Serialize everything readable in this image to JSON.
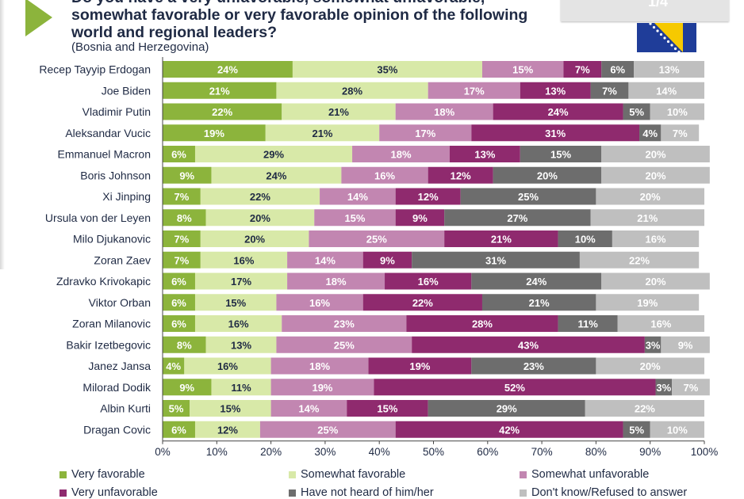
{
  "header": {
    "title": "Do you have a very unfavorable, somewhat unfavorable, somewhat favorable or very favorable opinion of the following world and regional leaders?",
    "subtitle": "(Bosnia and Herzegovina)",
    "page_number": "1/4"
  },
  "colors": {
    "very_favorable": "#8cb43c",
    "somewhat_favorable": "#d8e9a8",
    "somewhat_unfavorable": "#c286b1",
    "very_unfavorable": "#8f2a6e",
    "not_heard": "#6d6d6d",
    "dont_know": "#bfbfbf",
    "flag_blue": "#1f3d99",
    "flag_yellow": "#f6c900"
  },
  "chart_data": {
    "type": "bar",
    "orientation": "horizontal",
    "stacked": true,
    "xlim": [
      0,
      100
    ],
    "x_ticks": [
      "0%",
      "10%",
      "20%",
      "30%",
      "40%",
      "50%",
      "60%",
      "70%",
      "80%",
      "90%",
      "100%"
    ],
    "legend_position": "bottom",
    "categories": [
      "Recep Tayyip Erdogan",
      "Joe Biden",
      "Vladimir Putin",
      "Aleksandar Vucic",
      "Emmanuel Macron",
      "Boris Johnson",
      "Xi Jinping",
      "Ursula von der Leyen",
      "Milo Djukanovic",
      "Zoran Zaev",
      "Zdravko Krivokapic",
      "Viktor Orban",
      "Zoran Milanovic",
      "Bakir Izetbegovic",
      "Janez Jansa",
      "Milorad Dodik",
      "Albin Kurti",
      "Dragan Covic"
    ],
    "series": [
      {
        "name": "Very favorable",
        "values": [
          24,
          21,
          22,
          19,
          6,
          9,
          7,
          8,
          7,
          7,
          6,
          6,
          6,
          8,
          4,
          9,
          5,
          6
        ]
      },
      {
        "name": "Somewhat favorable",
        "values": [
          35,
          28,
          21,
          21,
          29,
          24,
          22,
          20,
          20,
          16,
          17,
          15,
          16,
          13,
          16,
          11,
          15,
          12
        ]
      },
      {
        "name": "Somewhat unfavorable",
        "values": [
          15,
          17,
          18,
          17,
          18,
          16,
          14,
          15,
          25,
          14,
          18,
          16,
          23,
          25,
          18,
          19,
          14,
          25
        ]
      },
      {
        "name": "Very unfavorable",
        "values": [
          7,
          13,
          24,
          31,
          13,
          12,
          12,
          9,
          21,
          9,
          16,
          22,
          28,
          43,
          19,
          52,
          15,
          42
        ]
      },
      {
        "name": "Have not heard of him/her",
        "values": [
          6,
          7,
          5,
          4,
          15,
          20,
          25,
          27,
          10,
          31,
          24,
          21,
          11,
          3,
          23,
          3,
          29,
          5
        ]
      },
      {
        "name": "Don't know/Refused to answer",
        "values": [
          13,
          14,
          10,
          7,
          20,
          20,
          20,
          21,
          16,
          22,
          20,
          19,
          16,
          9,
          20,
          7,
          22,
          10
        ]
      }
    ]
  }
}
